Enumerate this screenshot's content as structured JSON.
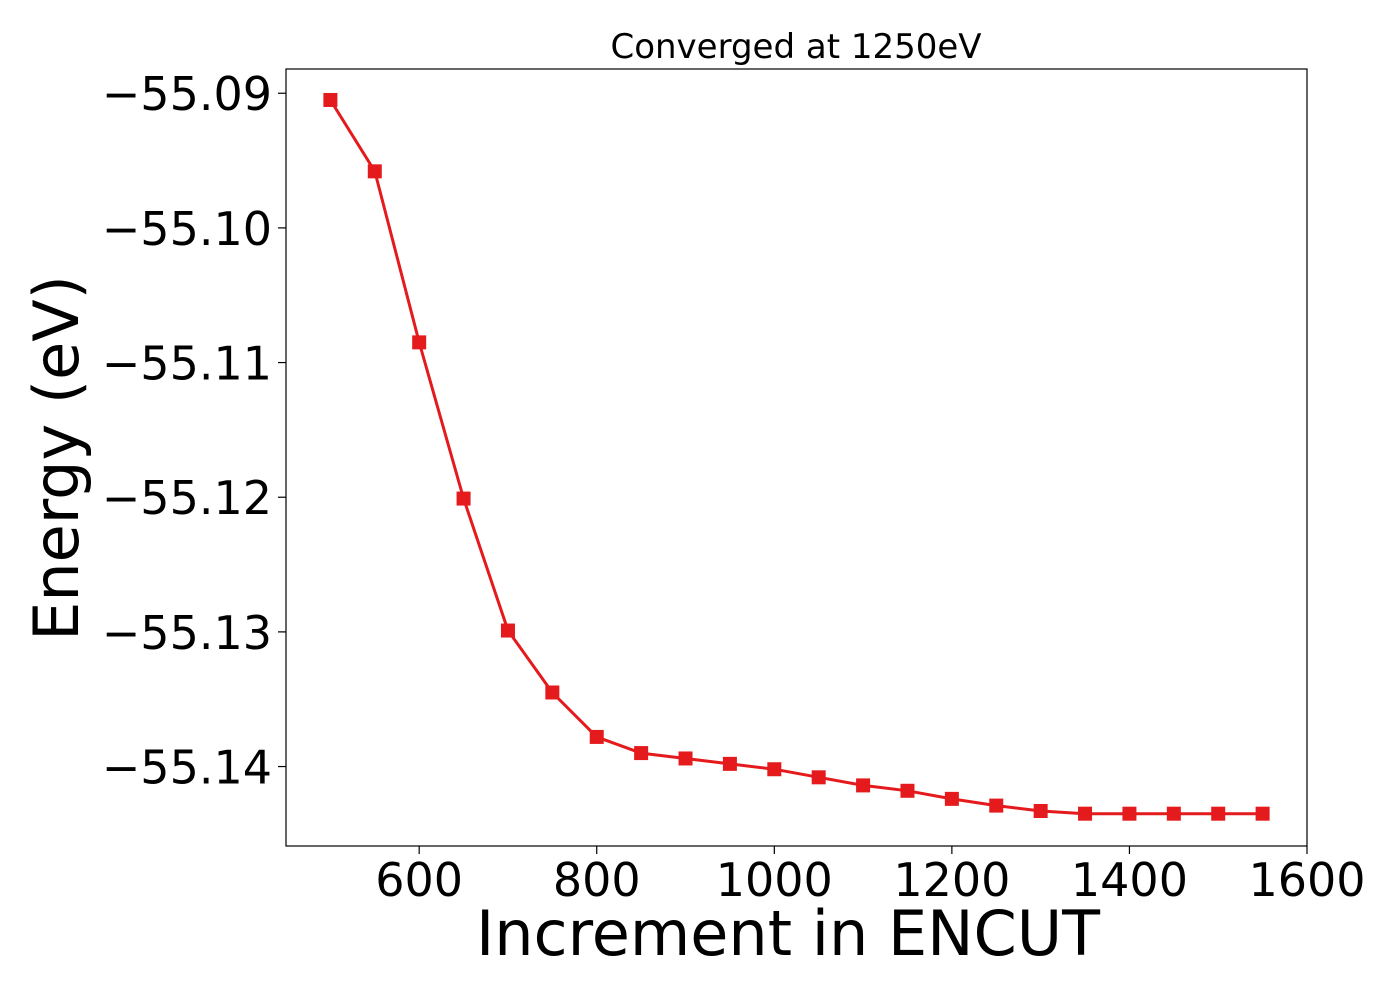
{
  "chart_data": {
    "type": "line",
    "title": "Converged at 1250eV",
    "xlabel": "Increment in ENCUT",
    "ylabel": "Energy (eV)",
    "xlim": [
      450,
      1600
    ],
    "ylim": [
      -55.1459,
      -55.0882
    ],
    "xticks": [
      600,
      800,
      1000,
      1200,
      1400,
      1600
    ],
    "xtick_labels": [
      "600",
      "800",
      "1000",
      "1200",
      "1400",
      "1600"
    ],
    "yticks": [
      -55.09,
      -55.1,
      -55.11,
      -55.12,
      -55.13,
      -55.14
    ],
    "ytick_labels": [
      "−55.09",
      "−55.10",
      "−55.11",
      "−55.12",
      "−55.13",
      "−55.14"
    ],
    "grid": false,
    "series": [
      {
        "color": "#e41a1c",
        "marker": "square",
        "x": [
          500,
          550,
          600,
          650,
          700,
          750,
          800,
          850,
          900,
          950,
          1000,
          1050,
          1100,
          1150,
          1200,
          1250,
          1300,
          1350,
          1400,
          1450,
          1500,
          1550
        ],
        "y": [
          -55.0905,
          -55.0958,
          -55.1085,
          -55.1201,
          -55.1299,
          -55.1345,
          -55.1378,
          -55.139,
          -55.1394,
          -55.1398,
          -55.1402,
          -55.1408,
          -55.1414,
          -55.1418,
          -55.1424,
          -55.1429,
          -55.1433,
          -55.1435,
          -55.1435,
          -55.1435,
          -55.1435,
          -55.1435
        ]
      }
    ]
  }
}
